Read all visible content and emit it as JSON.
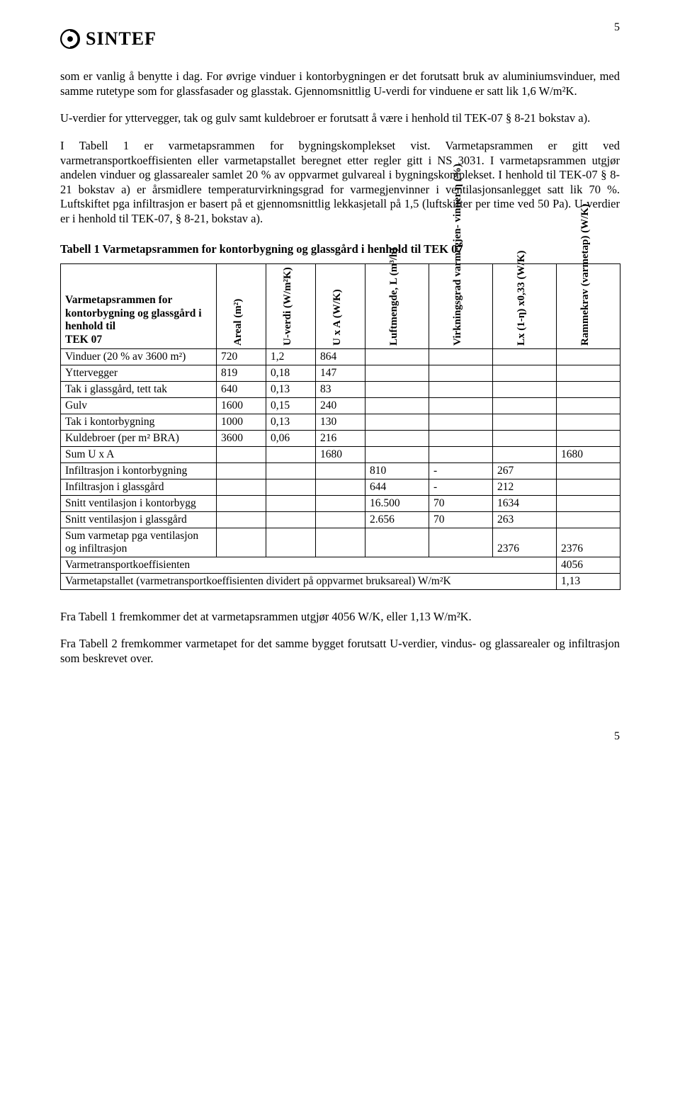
{
  "page_number_top": "5",
  "page_number_bottom": "5",
  "logo_text": "SINTEF",
  "paragraphs": {
    "p1": "som er vanlig å benytte i dag. For øvrige vinduer i kontorbygningen er det forutsatt bruk av aluminiumsvinduer, med samme rutetype som for glassfasader og glasstak. Gjennomsnittlig U-verdi for vinduene er satt lik 1,6 W/m²K.",
    "p2": "U-verdier for yttervegger, tak og gulv samt kuldebroer er forutsatt å være i henhold til TEK-07 § 8-21 bokstav a).",
    "p3": "I Tabell 1 er varmetapsrammen for bygningskomplekset vist. Varmetapsrammen er gitt ved varmetransportkoeffisienten eller varmetapstallet beregnet etter regler gitt i NS 3031. I varmetapsrammen utgjør andelen vinduer og glassarealer samlet 20 % av oppvarmet gulvareal i bygningskomplekset. I henhold til TEK-07 § 8-21 bokstav a) er årsmidlere temperaturvirkningsgrad for varmegjenvinner i ventilasjonsanlegget satt lik 70 %. Luftskiftet pga infiltrasjon er basert på et gjennomsnittlig lekkasjetall på 1,5 (luftskifter per time ved 50 Pa). U-verdier er i henhold til TEK-07, § 8-21, bokstav a).",
    "p4": "Fra Tabell 1 fremkommer det at varmetapsrammen utgjør 4056 W/K, eller 1,13 W/m²K.",
    "p5": "Fra Tabell 2 fremkommer varmetapet for det samme bygget forutsatt U-verdier, vindus- og glassarealer og infiltrasjon som beskrevet over."
  },
  "table_caption": "Tabell 1 Varmetapsrammen for kontorbygning og glassgård i henhold til TEK 07",
  "table": {
    "header_label": "Varmetapsrammen for kontorbygning og glassgård i henhold til\nTEK 07",
    "col_headers": [
      "Areal (m²)",
      "U-verdi (W/m²K)",
      "U x A (W/K)",
      "Luftmengde, L (m³/h)",
      "Virkningsgrad varmegjen- vinner η (%)",
      "Lx (1-η) x0,33 (W/K)",
      "Rammekrav (varmetap) (W/K)"
    ],
    "rows": [
      {
        "label": "Vinduer (20 % av 3600 m²)",
        "c": [
          "720",
          "1,2",
          "864",
          "",
          "",
          "",
          ""
        ]
      },
      {
        "label": "Yttervegger",
        "c": [
          "819",
          "0,18",
          "147",
          "",
          "",
          "",
          ""
        ]
      },
      {
        "label": "Tak i glassgård, tett tak",
        "c": [
          "640",
          "0,13",
          "83",
          "",
          "",
          "",
          ""
        ]
      },
      {
        "label": "Gulv",
        "c": [
          "1600",
          "0,15",
          "240",
          "",
          "",
          "",
          ""
        ]
      },
      {
        "label": "Tak i kontorbygning",
        "c": [
          "1000",
          "0,13",
          "130",
          "",
          "",
          "",
          ""
        ]
      },
      {
        "label": "Kuldebroer (per m² BRA)",
        "c": [
          "3600",
          "0,06",
          "216",
          "",
          "",
          "",
          ""
        ]
      },
      {
        "label": "Sum U x A",
        "c": [
          "",
          "",
          "1680",
          "",
          "",
          "",
          "1680"
        ]
      },
      {
        "label": "Infiltrasjon i kontorbygning",
        "c": [
          "",
          "",
          "",
          "810",
          "-",
          "267",
          ""
        ]
      },
      {
        "label": "Infiltrasjon i glassgård",
        "c": [
          "",
          "",
          "",
          "644",
          "-",
          "212",
          ""
        ]
      },
      {
        "label": "Snitt ventilasjon i kontorbygg",
        "c": [
          "",
          "",
          "",
          "16.500",
          "70",
          "1634",
          ""
        ]
      },
      {
        "label": "Snitt ventilasjon i glassgård",
        "c": [
          "",
          "",
          "",
          "2.656",
          "70",
          "263",
          ""
        ]
      },
      {
        "label": "Sum varmetap pga ventilasjon og infiltrasjon",
        "c": [
          "",
          "",
          "",
          "",
          "",
          "2376",
          "2376"
        ]
      }
    ],
    "span_rows": [
      {
        "label": "Varmetransportkoeffisienten",
        "value": "4056"
      },
      {
        "label": "Varmetapstallet (varmetransportkoeffisienten dividert på oppvarmet bruksareal) W/m²K",
        "value": "1,13"
      }
    ]
  }
}
